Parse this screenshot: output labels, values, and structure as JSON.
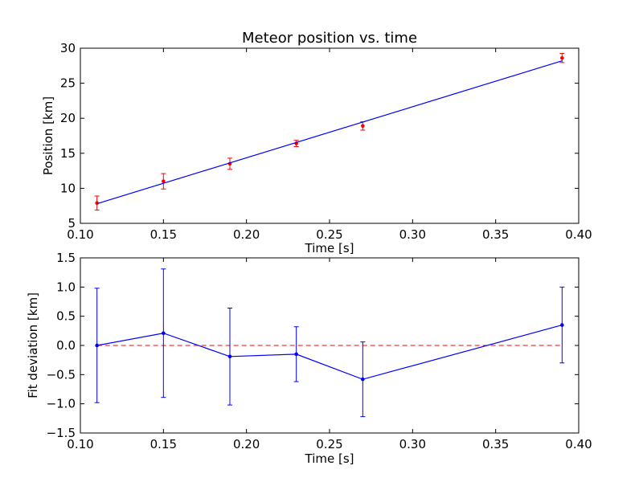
{
  "chart_data": [
    {
      "type": "scatter",
      "title": "Meteor position vs. time",
      "xlabel": "Time [s]",
      "ylabel": "Position [km]",
      "xlim": [
        0.1,
        0.4
      ],
      "ylim": [
        5,
        30
      ],
      "xticks": [
        "0.10",
        "0.15",
        "0.20",
        "0.25",
        "0.30",
        "0.35",
        "0.40"
      ],
      "yticks": [
        "5",
        "10",
        "15",
        "20",
        "25",
        "30"
      ],
      "grid": false,
      "series": [
        {
          "kind": "points-with-errorbars",
          "color": "#ff0000",
          "x": [
            0.11,
            0.15,
            0.19,
            0.23,
            0.27,
            0.39
          ],
          "y": [
            7.9,
            11.0,
            13.5,
            16.4,
            18.9,
            28.6
          ],
          "err": [
            1.0,
            1.1,
            0.8,
            0.45,
            0.6,
            0.65
          ]
        },
        {
          "kind": "fit-line",
          "color": "#0000ff",
          "x": [
            0.11,
            0.39
          ],
          "y": [
            7.8,
            28.2
          ]
        }
      ]
    },
    {
      "type": "line",
      "title": "",
      "xlabel": "Time [s]",
      "ylabel": "Fit deviation [km]",
      "xlim": [
        0.1,
        0.4
      ],
      "ylim": [
        -1.5,
        1.5
      ],
      "xticks": [
        "0.10",
        "0.15",
        "0.20",
        "0.25",
        "0.30",
        "0.35",
        "0.40"
      ],
      "yticks": [
        "−1.5",
        "−1.0",
        "−0.5",
        "0.0",
        "0.5",
        "1.0",
        "1.5"
      ],
      "grid": false,
      "reference_line": {
        "y": 0,
        "color": "#ff0000",
        "style": "dashed"
      },
      "series": [
        {
          "kind": "line-with-errorbars",
          "color": "#0000ff",
          "x": [
            0.11,
            0.15,
            0.19,
            0.23,
            0.27,
            0.39
          ],
          "y": [
            0.0,
            0.21,
            -0.19,
            -0.15,
            -0.58,
            0.35
          ],
          "err": [
            0.98,
            1.1,
            0.83,
            0.47,
            0.64,
            0.65
          ]
        }
      ]
    }
  ]
}
